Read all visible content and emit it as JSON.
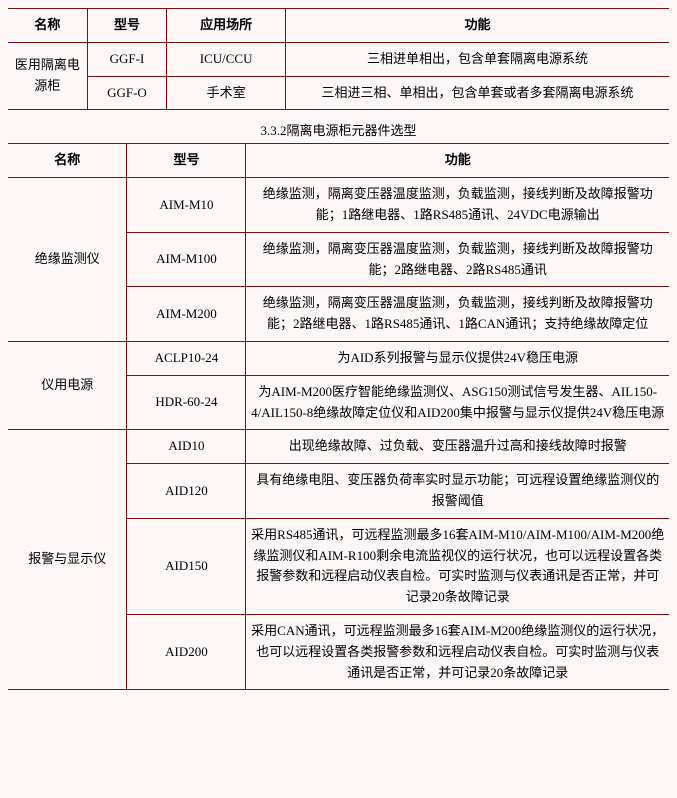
{
  "colors": {
    "background": "#fdf7f7",
    "border": "#7a1010",
    "text": "#000000"
  },
  "typography": {
    "font_family": "SimSun",
    "font_size_pt": 10,
    "line_height": 1.6
  },
  "table1": {
    "headers": {
      "name": "名称",
      "model": "型号",
      "place": "应用场所",
      "function": "功能"
    },
    "product_name": "医用隔离电源柜",
    "rows": [
      {
        "model": "GGF-I",
        "place": "ICU/CCU",
        "function": "三相进单相出，包含单套隔离电源系统"
      },
      {
        "model": "GGF-O",
        "place": "手术室",
        "function": "三相进三相、单相出，包含单套或者多套隔离电源系统"
      }
    ]
  },
  "section_title": "3.3.2隔离电源柜元器件选型",
  "table2": {
    "headers": {
      "name": "名称",
      "model": "型号",
      "function": "功能"
    },
    "groups": [
      {
        "name": "绝缘监测仪",
        "rows": [
          {
            "model": "AIM-M10",
            "function": "绝缘监测，隔离变压器温度监测，负载监测，接线判断及故障报警功能；1路继电器、1路RS485通讯、24VDC电源输出"
          },
          {
            "model": "AIM-M100",
            "function": "绝缘监测，隔离变压器温度监测，负载监测，接线判断及故障报警功能；2路继电器、2路RS485通讯"
          },
          {
            "model": "AIM-M200",
            "function": "绝缘监测，隔离变压器温度监测，负载监测，接线判断及故障报警功能；2路继电器、1路RS485通讯、1路CAN通讯；支持绝缘故障定位"
          }
        ]
      },
      {
        "name": "仪用电源",
        "rows": [
          {
            "model": "ACLP10-24",
            "function": "为AID系列报警与显示仪提供24V稳压电源"
          },
          {
            "model": "HDR-60-24",
            "function": "为AIM-M200医疗智能绝缘监测仪、ASG150测试信号发生器、AIL150-4/AIL150-8绝缘故障定位仪和AID200集中报警与显示仪提供24V稳压电源"
          }
        ]
      },
      {
        "name": "报警与显示仪",
        "rows": [
          {
            "model": "AID10",
            "function": "出现绝缘故障、过负载、变压器温升过高和接线故障时报警"
          },
          {
            "model": "AID120",
            "function": "具有绝缘电阻、变压器负荷率实时显示功能；可远程设置绝缘监测仪的报警阈值"
          },
          {
            "model": "AID150",
            "function": "采用RS485通讯，可远程监测最多16套AIM-M10/AIM-M100/AIM-M200绝缘监测仪和AIM-R100剩余电流监视仪的运行状况，也可以远程设置各类报警参数和远程启动仪表自检。可实时监测与仪表通讯是否正常，并可记录20条故障记录"
          },
          {
            "model": "AID200",
            "function": "采用CAN通讯，可远程监测最多16套AIM-M200绝缘监测仪的运行状况，也可以远程设置各类报警参数和远程启动仪表自检。可实时监测与仪表通讯是否正常，并可记录20条故障记录"
          }
        ]
      }
    ]
  }
}
